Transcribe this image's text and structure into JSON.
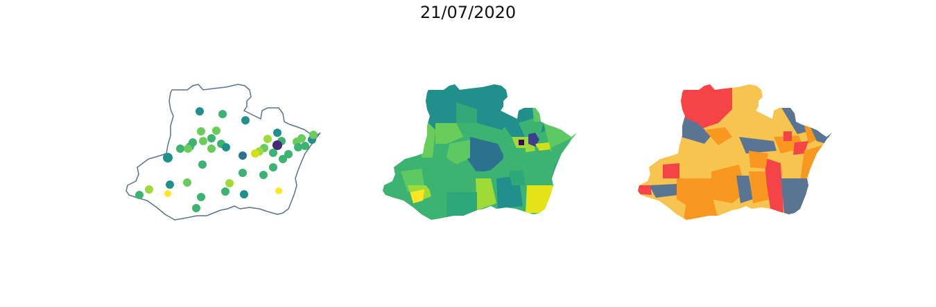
{
  "title": "21/07/2020",
  "colors": {
    "outline": "#58718e",
    "viridis": [
      "#440154",
      "#3b528b",
      "#21908d",
      "#5dc963",
      "#fde725"
    ],
    "risk": {
      "low": "#5a7594",
      "moderate": "#f8c450",
      "high": "#f89820",
      "very_high": "#f54447"
    }
  }
}
